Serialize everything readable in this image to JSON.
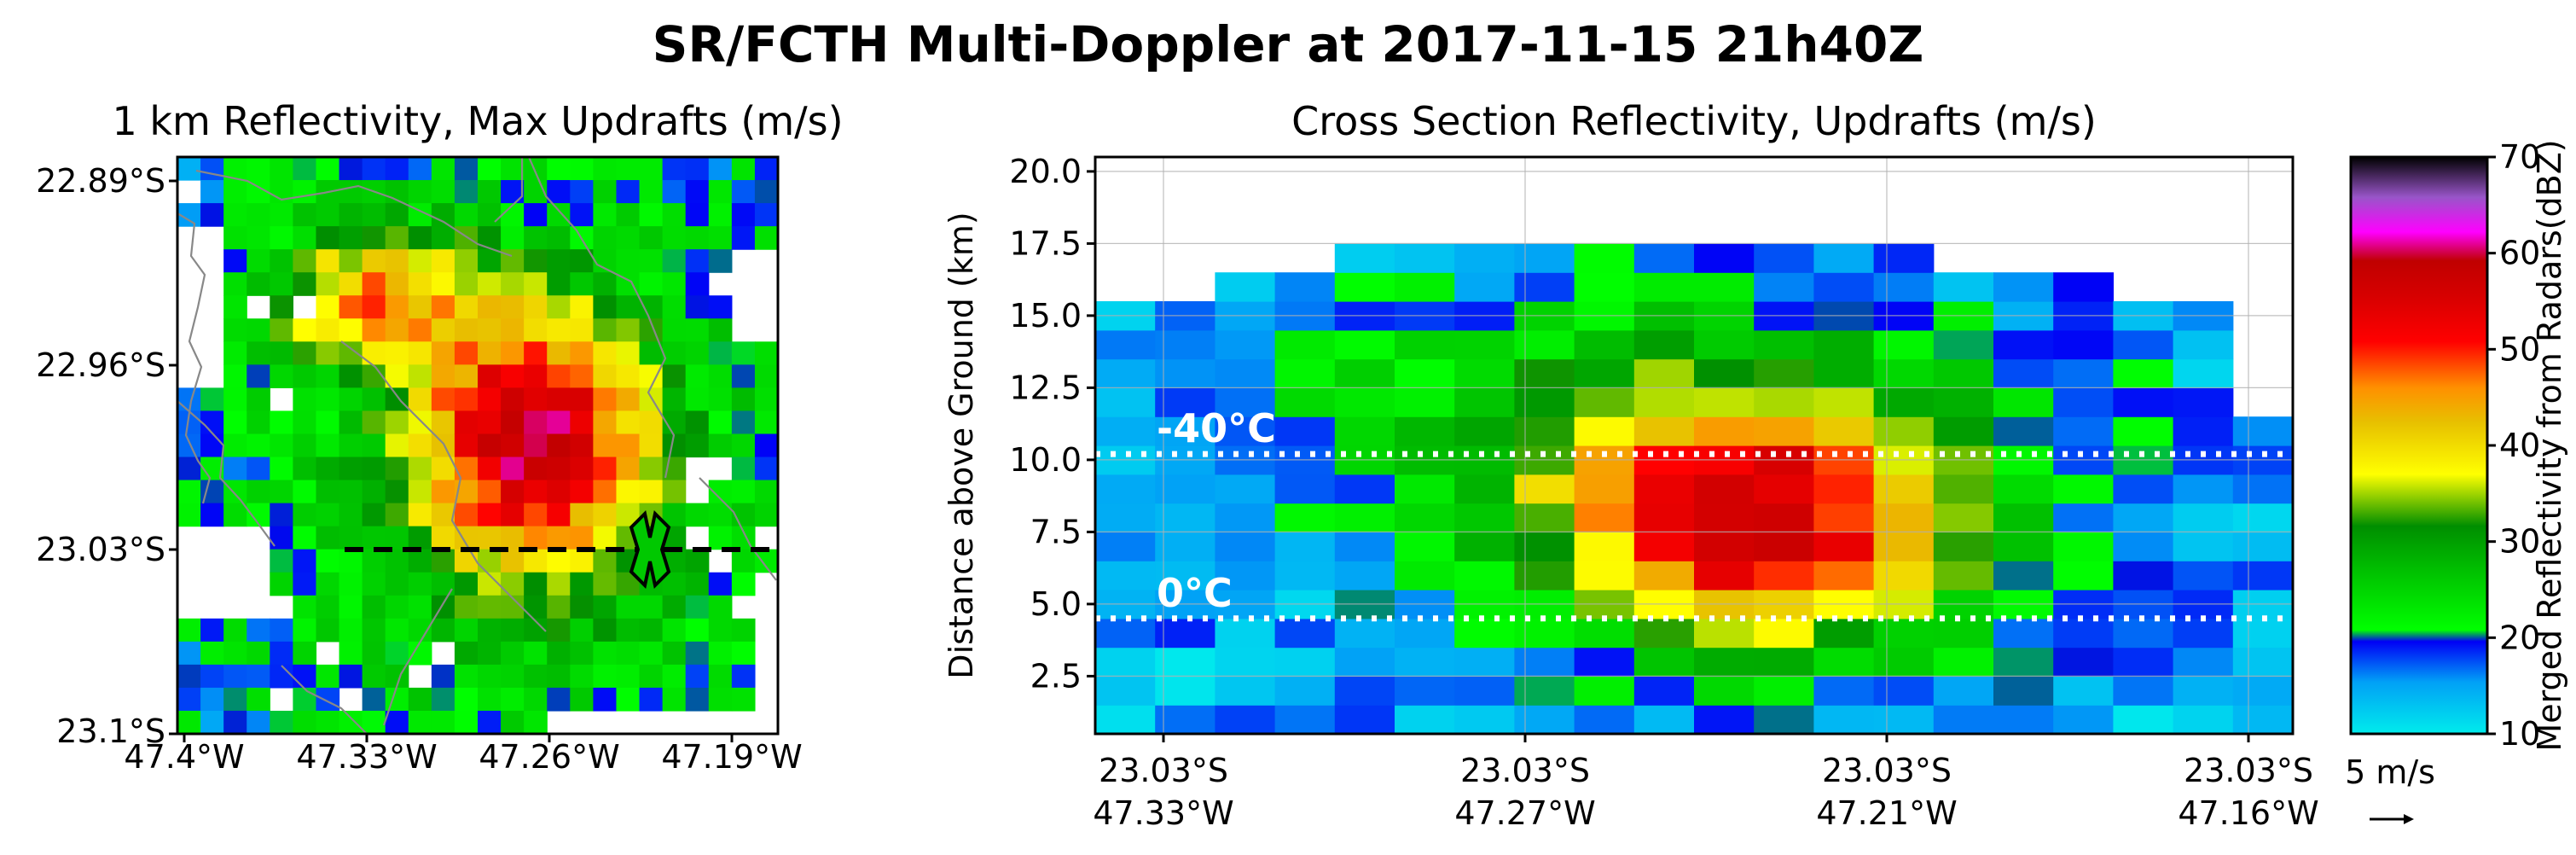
{
  "figure": {
    "title": "SR/FCTH Multi-Doppler at 2017-11-15 21h40Z"
  },
  "chart_data": [
    {
      "panel": "map",
      "type": "heatmap",
      "title": "1 km Reflectivity, Max Updrafts (m/s)",
      "xlabel": "",
      "ylabel": "",
      "x_tick_labels": [
        "47.4°W",
        "47.33°W",
        "47.26°W",
        "47.19°W"
      ],
      "y_tick_labels": [
        "22.89°S",
        "22.96°S",
        "23.03°S",
        "23.1°S"
      ],
      "cross_section_line": "23.03°S",
      "marker": "X at 47.21°W, 23.03°S"
    },
    {
      "panel": "cross_section",
      "type": "heatmap",
      "title": "Cross Section Reflectivity, Updrafts (m/s)",
      "xlabel": "",
      "ylabel": "Distance above Ground (km)",
      "ylim": [
        0.5,
        20.5
      ],
      "y_ticks": [
        "2.5",
        "5.0",
        "7.5",
        "10.0",
        "12.5",
        "15.0",
        "17.5",
        "20.0"
      ],
      "x_tick_labels": [
        [
          "23.03°S",
          "47.33°W"
        ],
        [
          "23.03°S",
          "47.27°W"
        ],
        [
          "23.03°S",
          "47.21°W"
        ],
        [
          "23.03°S",
          "47.16°W"
        ]
      ],
      "isotherms": [
        {
          "label": "-40°C",
          "height_km": 10.2
        },
        {
          "label": "0°C",
          "height_km": 4.5
        }
      ],
      "grid": true
    }
  ],
  "colorbar": {
    "label": "Merged Reflectivity from Radars(dBZ)",
    "range": [
      10,
      70
    ],
    "tick_labels": [
      "10",
      "20",
      "30",
      "40",
      "50",
      "60",
      "70"
    ]
  },
  "quiver_key": {
    "label": "5 m/s"
  }
}
